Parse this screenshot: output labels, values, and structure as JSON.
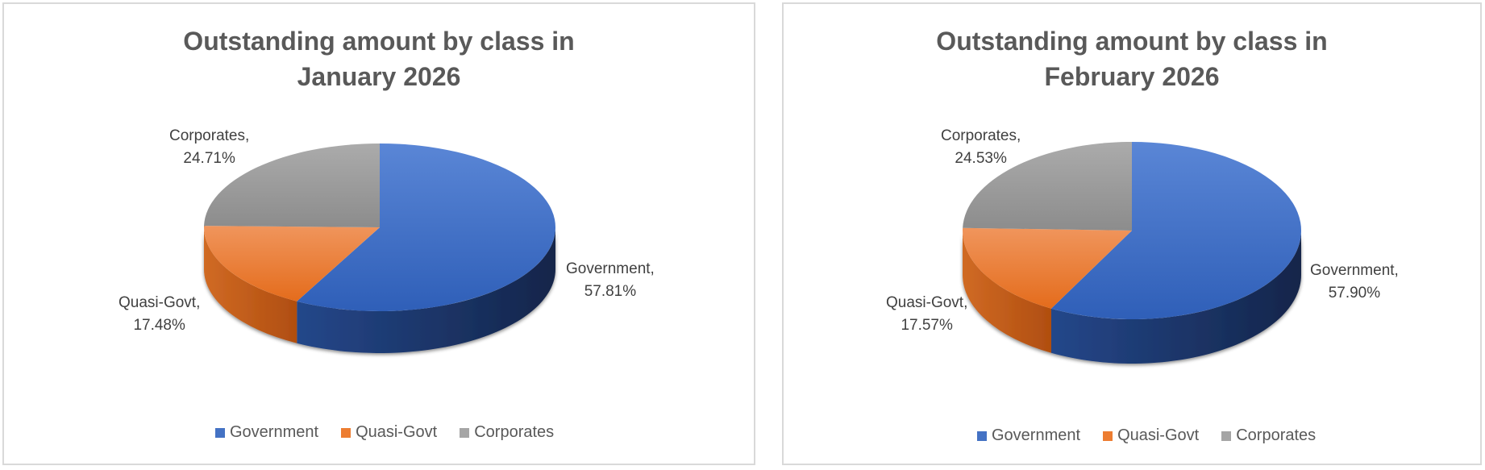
{
  "charts": [
    {
      "title_line1": "Outstanding amount by class in",
      "title_line2": "January 2026",
      "labels": [
        {
          "name": "Government,",
          "value": "57.81%"
        },
        {
          "name": "Quasi-Govt,",
          "value": "17.48%"
        },
        {
          "name": "Corporates,",
          "value": "24.71%"
        }
      ],
      "legend": [
        "Government",
        "Quasi-Govt",
        "Corporates"
      ]
    },
    {
      "title_line1": "Outstanding amount by class in",
      "title_line2": "February 2026",
      "labels": [
        {
          "name": "Government,",
          "value": "57.90%"
        },
        {
          "name": "Quasi-Govt,",
          "value": "17.57%"
        },
        {
          "name": "Corporates,",
          "value": "24.53%"
        }
      ],
      "legend": [
        "Government",
        "Quasi-Govt",
        "Corporates"
      ]
    }
  ],
  "colors": {
    "Government": "#4472c4",
    "Quasi-Govt": "#ed7d31",
    "Corporates": "#a5a5a5"
  },
  "chart_data": [
    {
      "type": "pie",
      "title": "Outstanding amount by class in January 2026",
      "categories": [
        "Government",
        "Quasi-Govt",
        "Corporates"
      ],
      "values": [
        57.81,
        17.48,
        24.71
      ],
      "unit": "%",
      "style": "3d",
      "legend_position": "bottom"
    },
    {
      "type": "pie",
      "title": "Outstanding amount by class in February 2026",
      "categories": [
        "Government",
        "Quasi-Govt",
        "Corporates"
      ],
      "values": [
        57.9,
        17.57,
        24.53
      ],
      "unit": "%",
      "style": "3d",
      "legend_position": "bottom"
    }
  ]
}
